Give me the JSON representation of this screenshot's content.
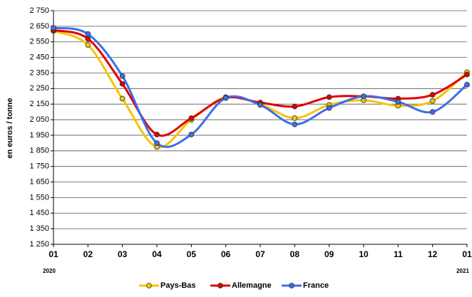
{
  "chart_data": {
    "type": "line",
    "y_label": "en euros / tonne",
    "categories": [
      "01",
      "02",
      "03",
      "04",
      "05",
      "06",
      "07",
      "08",
      "09",
      "10",
      "11",
      "12",
      "01"
    ],
    "year_labels": [
      "2020",
      null,
      null,
      null,
      null,
      null,
      null,
      null,
      null,
      null,
      null,
      null,
      "2021"
    ],
    "series": [
      {
        "name": "Pays-Bas",
        "color": "#f5c400",
        "values": [
          2620,
          2530,
          2185,
          1875,
          2050,
          2195,
          2150,
          2060,
          2145,
          2175,
          2140,
          2170,
          2355
        ]
      },
      {
        "name": "Allemagne",
        "color": "#e00000",
        "values": [
          2625,
          2570,
          2280,
          1955,
          2060,
          2190,
          2160,
          2135,
          2195,
          2200,
          2185,
          2210,
          2340
        ]
      },
      {
        "name": "France",
        "color": "#3d6ee8",
        "values": [
          2640,
          2600,
          2330,
          1900,
          1955,
          2190,
          2145,
          2020,
          2125,
          2200,
          2165,
          2100,
          2275
        ]
      }
    ],
    "ylim": [
      1250,
      2750
    ],
    "yticks": [
      {
        "value": 1250,
        "label": "1 250"
      },
      {
        "value": 1350,
        "label": "1 350"
      },
      {
        "value": 1450,
        "label": "1 450"
      },
      {
        "value": 1550,
        "label": "1 550"
      },
      {
        "value": 1650,
        "label": "1 650"
      },
      {
        "value": 1750,
        "label": "1 750"
      },
      {
        "value": 1850,
        "label": "1 850"
      },
      {
        "value": 1950,
        "label": "1 950"
      },
      {
        "value": 2050,
        "label": "2 050"
      },
      {
        "value": 2150,
        "label": "2 150"
      },
      {
        "value": 2250,
        "label": "2 250"
      },
      {
        "value": 2350,
        "label": "2 350"
      },
      {
        "value": 2450,
        "label": "2 450"
      },
      {
        "value": 2550,
        "label": "2 550"
      },
      {
        "value": 2650,
        "label": "2 650"
      },
      {
        "value": 2750,
        "label": "2 750"
      }
    ],
    "grid": true
  }
}
